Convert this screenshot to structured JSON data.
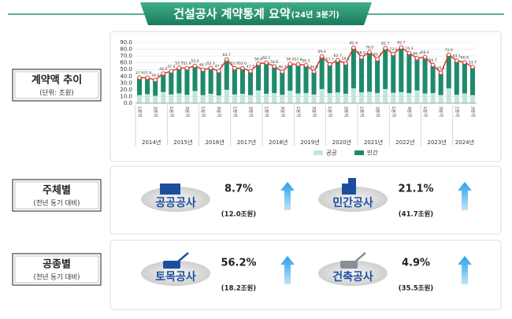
{
  "title": "건설공사 계약통계 요약",
  "title_suffix": "(24년 3분기)",
  "sections": [
    {
      "label": "계약액 추이",
      "sub": "(단위: 조원)"
    },
    {
      "label": "주체별",
      "sub": "(전년 동기 대비)"
    },
    {
      "label": "공종별",
      "sub": "(전년 동기 대비)"
    }
  ],
  "cards": [
    {
      "name": "공공공사",
      "rate": "8.7%",
      "amount": "(12.0조원)"
    },
    {
      "name": "민간공사",
      "rate": "21.1%",
      "amount": "(41.7조원)"
    },
    {
      "name": "토목공사",
      "rate": "56.2%",
      "amount": "(18.2조원)"
    },
    {
      "name": "건축공사",
      "rate": "4.9%",
      "amount": "(35.5조원)"
    }
  ],
  "chart_data": {
    "type": "bar",
    "legend": "bottom",
    "categories": [
      "1분기",
      null,
      "3분기",
      null,
      "1분기",
      null,
      "3분기",
      null,
      "1분기",
      null,
      "3분기",
      null,
      "1분기",
      null,
      "3분기",
      null,
      "1분기",
      null,
      "3분기",
      null,
      "1분기",
      null,
      "3분기",
      null,
      "1분기",
      null,
      "3분기",
      null,
      "1분기",
      null,
      "3분기",
      null,
      "1분기",
      null,
      "3분기",
      null,
      "1분기",
      null,
      "3분기",
      null,
      "1분기",
      null,
      "3분기"
    ],
    "years": [
      "2014년",
      "2015년",
      "2016년",
      "2017년",
      "2018년",
      "2019년",
      "2020년",
      "2021년",
      "2022년",
      "2023년",
      "2024년"
    ],
    "ylim": [
      0,
      90
    ],
    "yticks": [
      {
        "value": 0,
        "label": "0.0"
      },
      {
        "value": 10,
        "label": "10.0"
      },
      {
        "value": 20,
        "label": "20.0"
      },
      {
        "value": 30,
        "label": "30.0"
      },
      {
        "value": 40,
        "label": "40.0"
      },
      {
        "value": 50,
        "label": "50.0"
      },
      {
        "value": 60,
        "label": "60.0"
      },
      {
        "value": 70,
        "label": "70.0"
      },
      {
        "value": 80,
        "label": "80.0"
      },
      {
        "value": 90,
        "label": "90.0"
      }
    ],
    "series": [
      {
        "name": "공공",
        "color": "#bfe6de",
        "values": [
          12.0,
          13.5,
          11.0,
          16.5,
          13.0,
          14.5,
          12.5,
          18.0,
          12.0,
          14.0,
          11.5,
          20.0,
          13.0,
          14.0,
          12.0,
          19.0,
          14.0,
          15.0,
          12.5,
          18.5,
          14.5,
          15.0,
          13.0,
          21.0,
          15.0,
          16.0,
          14.0,
          22.0,
          16.0,
          17.0,
          15.0,
          21.0,
          15.5,
          16.5,
          15.0,
          19.0,
          14.5,
          15.0,
          12.0,
          22.0,
          12.5,
          14.5,
          12.0
        ]
      },
      {
        "name": "민간",
        "color": "#1f8a6a",
        "values": [
          25.9,
          24.4,
          23.4,
          27.5,
          34.4,
          38.0,
          39.4,
          37.4,
          37.7,
          38.3,
          36.2,
          44.7,
          38.9,
          38.0,
          35.5,
          39.6,
          46.1,
          39.6,
          34.2,
          39.7,
          43.1,
          41.3,
          33.9,
          48.4,
          42.7,
          47.7,
          45.1,
          60.4,
          52.0,
          59.0,
          50.2,
          60.7,
          57.5,
          66.2,
          59.3,
          47.7,
          53.9,
          41.7,
          33.1,
          50.0,
          50.6,
          46.1,
          41.7
        ]
      }
    ],
    "total": {
      "color": "#d93a2f",
      "values": [
        37.9,
        37.9,
        34.4,
        44.0,
        47.4,
        52.5,
        51.9,
        55.4,
        49.7,
        52.3,
        47.7,
        64.7,
        51.9,
        52.0,
        47.5,
        58.6,
        60.1,
        54.6,
        46.7,
        58.2,
        57.6,
        56.3,
        46.9,
        69.4,
        57.7,
        63.7,
        59.1,
        82.4,
        68.0,
        76.0,
        65.2,
        81.7,
        73.0,
        82.7,
        74.3,
        66.7,
        68.4,
        56.7,
        45.1,
        72.0,
        63.1,
        60.6,
        53.7
      ],
      "value_labels": [
        "37.9",
        "37.9",
        "34.4",
        "44.0",
        "47.4",
        "52.5",
        "51.9",
        "55.4",
        "49.7",
        "52.3",
        "47.7",
        "64.7",
        "51.9",
        "52.0",
        "47.5",
        "58.6",
        "60.1",
        "54.6",
        "46.7",
        "58.2",
        "57.6",
        "56.3",
        "46.9",
        "69.4",
        "57.7",
        "63.7",
        "59.1",
        "82.4",
        "68.0",
        "76.0",
        "65.2",
        "81.7",
        "73.0",
        "82.7",
        "74.3",
        "66.7",
        "68.4",
        "56.7",
        "45.1",
        "72.0",
        "63.1",
        "60.6",
        "53.7"
      ]
    }
  }
}
